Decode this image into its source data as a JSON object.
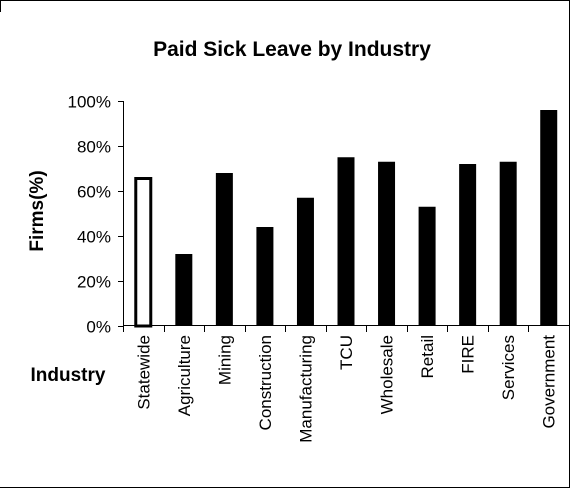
{
  "chart_data": {
    "type": "bar",
    "title": "Paid Sick Leave by Industry",
    "xlabel": "Industry",
    "ylabel": "Firms(%)",
    "ylim": [
      0,
      100
    ],
    "yticks": [
      0,
      20,
      40,
      60,
      80,
      100
    ],
    "ytick_labels": [
      "0%",
      "20%",
      "40%",
      "60%",
      "80%",
      "100%"
    ],
    "grid": false,
    "legend": "none",
    "categories": [
      "Statewide",
      "Agriculture",
      "Mining",
      "Construction",
      "Manufacturing",
      "TCU",
      "Wholesale",
      "Retail",
      "FIRE",
      "Services",
      "Government"
    ],
    "values": [
      66,
      32,
      68,
      44,
      57,
      75,
      73,
      53,
      72,
      73,
      96
    ],
    "highlight_index": 0,
    "colors": {
      "bar": "#000000",
      "highlight_fill": "#ffffff",
      "axis": "#000000",
      "border": "#000000"
    }
  }
}
